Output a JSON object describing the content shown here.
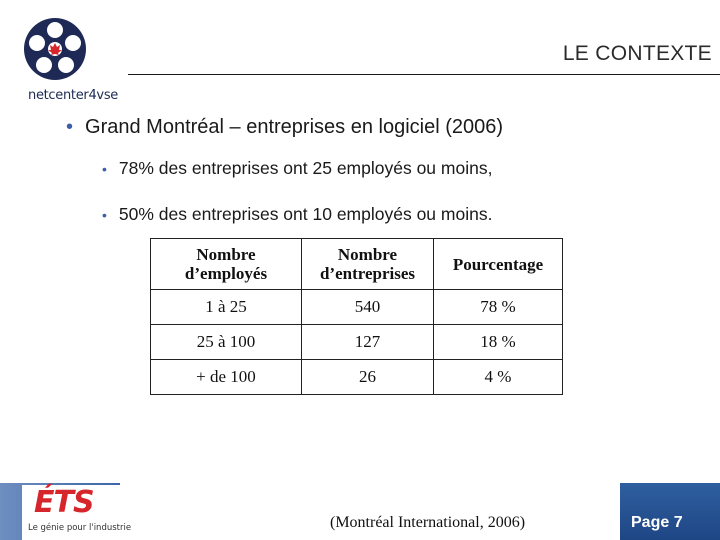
{
  "header": {
    "logo_text": "netcenter4vse",
    "title": "LE CONTEXTE"
  },
  "content": {
    "main_bullet": "Grand Montréal – entreprises en logiciel (2006)",
    "sub_bullets": [
      "78% des entreprises ont 25 employés ou moins,",
      "50% des entreprises ont 10 employés ou moins."
    ]
  },
  "table": {
    "headers": [
      [
        "Nombre",
        "d’employés"
      ],
      [
        "Nombre",
        "d’entreprises"
      ],
      [
        "Pourcentage"
      ]
    ],
    "rows": [
      [
        "1 à 25",
        "540",
        "78 %"
      ],
      [
        "25 à 100",
        "127",
        "18 %"
      ],
      [
        "+ de 100",
        "26",
        "4 %"
      ]
    ]
  },
  "footer": {
    "ets_logo": "ÉTS",
    "ets_tagline": "Le génie pour l'industrie",
    "source": "(Montréal International, 2006)",
    "page": "Page 7"
  },
  "colors": {
    "footer_blue": "#2f5fa0",
    "bullet_blue": "#3a5fa8",
    "ets_red": "#d7262b",
    "maple_red": "#d7262b"
  }
}
